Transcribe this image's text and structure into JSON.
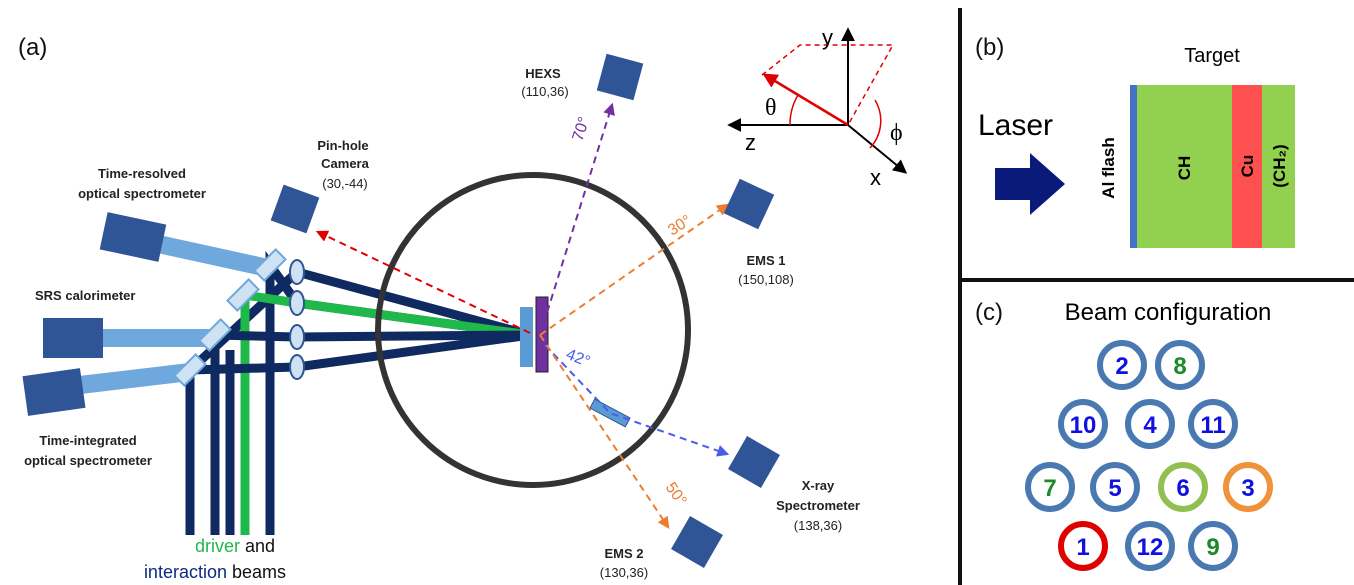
{
  "panel_a": {
    "label": "(a)",
    "hexs": {
      "lines": [
        "HEXS"
      ],
      "coords": "(110,36)"
    },
    "pinhole": {
      "lines": [
        "Pin-hole",
        "Camera"
      ],
      "coords": "(30,-44)"
    },
    "ems1": {
      "lines": [
        "EMS 1"
      ],
      "coords": "(150,108)"
    },
    "xray": {
      "lines": [
        "X-ray",
        "Spectrometer"
      ],
      "coords": "(138,36)"
    },
    "ems2": {
      "lines": [
        "EMS 2"
      ],
      "coords": "(130,36)"
    },
    "tros": {
      "lines": [
        "Time-resolved",
        "optical spectrometer"
      ]
    },
    "srs": {
      "lines": [
        "SRS calorimeter"
      ]
    },
    "tios": {
      "lines": [
        "Time-integrated",
        "optical spectrometer"
      ]
    },
    "angles": [
      "70°",
      "30°",
      "42°",
      "50°"
    ],
    "axes": {
      "y": "y",
      "z": "z",
      "x": "x",
      "theta": "θ",
      "phi": "ϕ"
    },
    "caption": {
      "driver": "driver",
      "and": "and",
      "interaction": "interaction",
      "beams": "beams"
    }
  },
  "panel_b": {
    "label": "(b)",
    "title": "Target",
    "laser": "Laser",
    "layers": [
      "Al  flash",
      "CH",
      "Cu",
      "(CH₂)"
    ]
  },
  "panel_c": {
    "label": "(c)",
    "title": "Beam configuration",
    "beams": [
      {
        "label": "2",
        "text_color": "#1010e0",
        "ring_color": "#4a78b0"
      },
      {
        "label": "8",
        "text_color": "#1a8a2a",
        "ring_color": "#4a78b0"
      },
      {
        "label": "10",
        "text_color": "#1010e0",
        "ring_color": "#4a78b0"
      },
      {
        "label": "4",
        "text_color": "#1010e0",
        "ring_color": "#4a78b0"
      },
      {
        "label": "11",
        "text_color": "#1010e0",
        "ring_color": "#4a78b0"
      },
      {
        "label": "7",
        "text_color": "#1a8a2a",
        "ring_color": "#4a78b0"
      },
      {
        "label": "5",
        "text_color": "#1010e0",
        "ring_color": "#4a78b0"
      },
      {
        "label": "6",
        "text_color": "#1010e0",
        "ring_color": "#92c050"
      },
      {
        "label": "3",
        "text_color": "#1010e0",
        "ring_color": "#f0923a"
      },
      {
        "label": "1",
        "text_color": "#1010e0",
        "ring_color": "#e00000"
      },
      {
        "label": "12",
        "text_color": "#1010e0",
        "ring_color": "#4a78b0"
      },
      {
        "label": "9",
        "text_color": "#1a8a2a",
        "ring_color": "#4a78b0"
      }
    ]
  }
}
